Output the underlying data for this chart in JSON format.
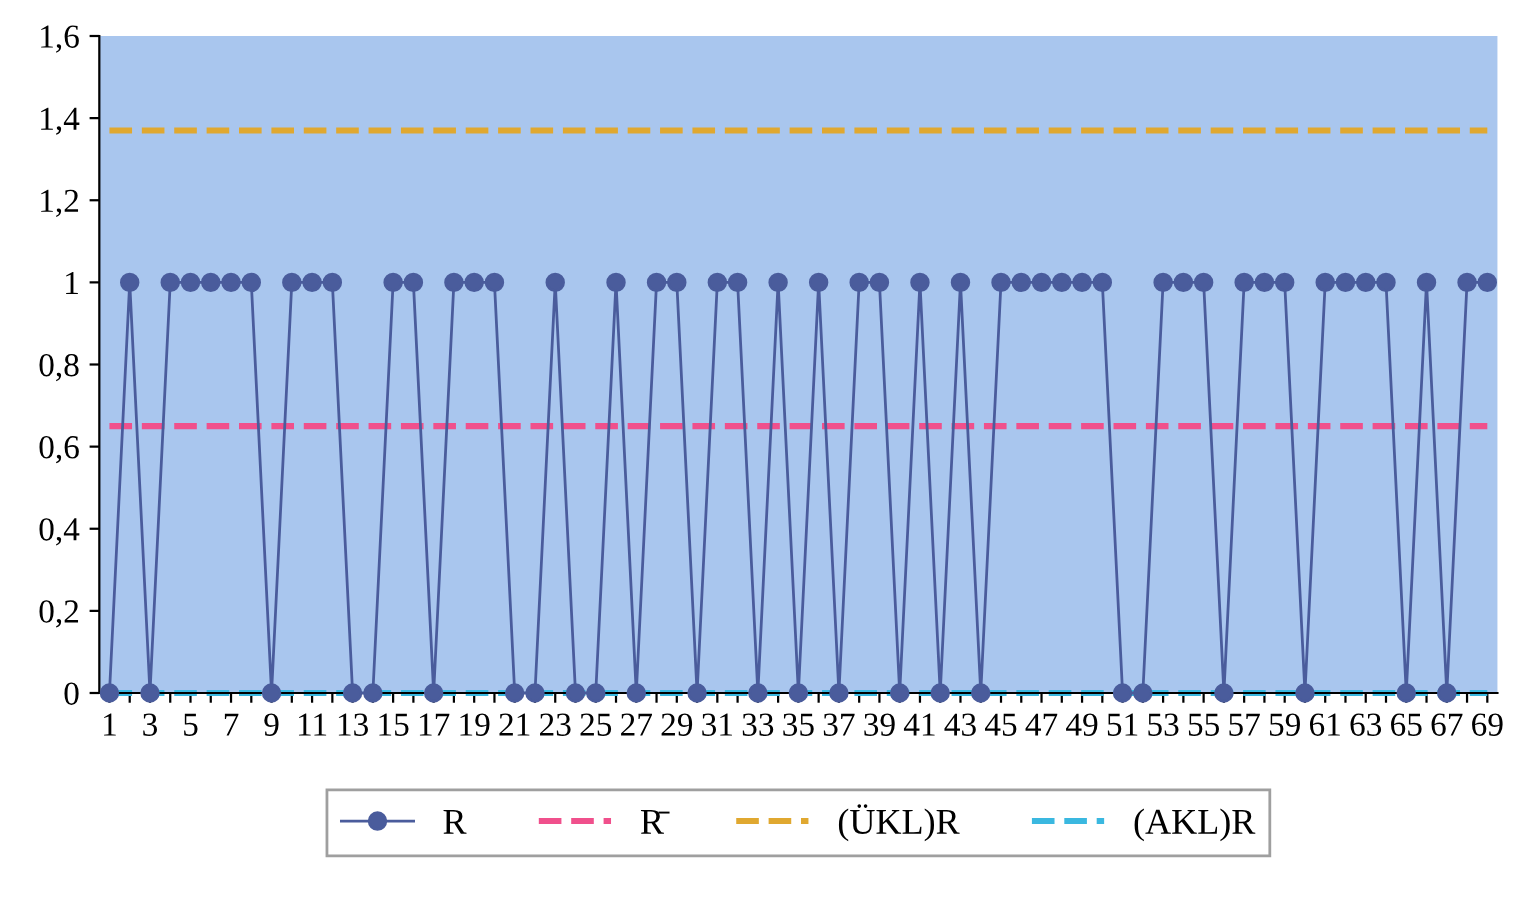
{
  "chart_data": {
    "type": "line",
    "categories": [
      "1",
      null,
      "3",
      null,
      "5",
      null,
      "7",
      null,
      "9",
      null,
      "11",
      null,
      "13",
      null,
      "15",
      null,
      "17",
      null,
      "19",
      null,
      "21",
      null,
      "23",
      null,
      "25",
      null,
      "27",
      null,
      "29",
      null,
      "31",
      null,
      "33",
      null,
      "35",
      null,
      "37",
      null,
      "39",
      null,
      "41",
      null,
      "43",
      null,
      "45",
      null,
      "47",
      null,
      "49",
      null,
      "51",
      null,
      "53",
      null,
      "55",
      null,
      "57",
      null,
      "59",
      null,
      "61",
      null,
      "63",
      null,
      "65",
      null,
      "67",
      null,
      "69"
    ],
    "series": [
      {
        "name": "R",
        "color": "#4a5c9c",
        "marker": "circle",
        "values": [
          0,
          1,
          0,
          1,
          1,
          1,
          1,
          1,
          0,
          1,
          1,
          1,
          0,
          0,
          1,
          1,
          0,
          1,
          1,
          1,
          0,
          0,
          1,
          0,
          0,
          1,
          0,
          1,
          1,
          0,
          1,
          1,
          0,
          1,
          0,
          1,
          0,
          1,
          1,
          0,
          1,
          0,
          1,
          0,
          1,
          1,
          1,
          1,
          1,
          1,
          0,
          0,
          1,
          1,
          1,
          0,
          1,
          1,
          1,
          0,
          1,
          1,
          1,
          1,
          0,
          1,
          0,
          1,
          1
        ]
      },
      {
        "name": "R̄",
        "color": "#f0508c",
        "marker": "none",
        "line_style": "dashed",
        "values": [
          0.65,
          0.65,
          0.65,
          0.65,
          0.65,
          0.65,
          0.65,
          0.65,
          0.65,
          0.65,
          0.65,
          0.65,
          0.65,
          0.65,
          0.65,
          0.65,
          0.65,
          0.65,
          0.65,
          0.65,
          0.65,
          0.65,
          0.65,
          0.65,
          0.65,
          0.65,
          0.65,
          0.65,
          0.65,
          0.65,
          0.65,
          0.65,
          0.65,
          0.65,
          0.65,
          0.65,
          0.65,
          0.65,
          0.65,
          0.65,
          0.65,
          0.65,
          0.65,
          0.65,
          0.65,
          0.65,
          0.65,
          0.65,
          0.65,
          0.65,
          0.65,
          0.65,
          0.65,
          0.65,
          0.65,
          0.65,
          0.65,
          0.65,
          0.65,
          0.65,
          0.65,
          0.65,
          0.65,
          0.65,
          0.65,
          0.65,
          0.65,
          0.65,
          0.65
        ]
      },
      {
        "name": "(ÜKL)R",
        "color": "#e0a830",
        "marker": "none",
        "line_style": "dashed",
        "values": [
          1.37,
          1.37,
          1.37,
          1.37,
          1.37,
          1.37,
          1.37,
          1.37,
          1.37,
          1.37,
          1.37,
          1.37,
          1.37,
          1.37,
          1.37,
          1.37,
          1.37,
          1.37,
          1.37,
          1.37,
          1.37,
          1.37,
          1.37,
          1.37,
          1.37,
          1.37,
          1.37,
          1.37,
          1.37,
          1.37,
          1.37,
          1.37,
          1.37,
          1.37,
          1.37,
          1.37,
          1.37,
          1.37,
          1.37,
          1.37,
          1.37,
          1.37,
          1.37,
          1.37,
          1.37,
          1.37,
          1.37,
          1.37,
          1.37,
          1.37,
          1.37,
          1.37,
          1.37,
          1.37,
          1.37,
          1.37,
          1.37,
          1.37,
          1.37,
          1.37,
          1.37,
          1.37,
          1.37,
          1.37,
          1.37,
          1.37,
          1.37,
          1.37,
          1.37
        ]
      },
      {
        "name": "(AKL)R",
        "color": "#3ab8e0",
        "marker": "none",
        "line_style": "dashed",
        "values": [
          0,
          0,
          0,
          0,
          0,
          0,
          0,
          0,
          0,
          0,
          0,
          0,
          0,
          0,
          0,
          0,
          0,
          0,
          0,
          0,
          0,
          0,
          0,
          0,
          0,
          0,
          0,
          0,
          0,
          0,
          0,
          0,
          0,
          0,
          0,
          0,
          0,
          0,
          0,
          0,
          0,
          0,
          0,
          0,
          0,
          0,
          0,
          0,
          0,
          0,
          0,
          0,
          0,
          0,
          0,
          0,
          0,
          0,
          0,
          0,
          0,
          0,
          0,
          0,
          0,
          0,
          0,
          0,
          0
        ]
      }
    ],
    "ylim": [
      0,
      1.6
    ],
    "yticks": [
      0,
      {
        "value": 0.2,
        "label": "0,2"
      },
      {
        "value": 0.4,
        "label": "0,4"
      },
      {
        "value": 0.6,
        "label": "0,6"
      },
      {
        "value": 0.8,
        "label": "0,8"
      },
      1,
      {
        "value": 1.2,
        "label": "1,2"
      },
      {
        "value": 1.4,
        "label": "1,4"
      },
      {
        "value": 1.6,
        "label": "1,6"
      }
    ],
    "legend": "bottom",
    "grid": false
  }
}
